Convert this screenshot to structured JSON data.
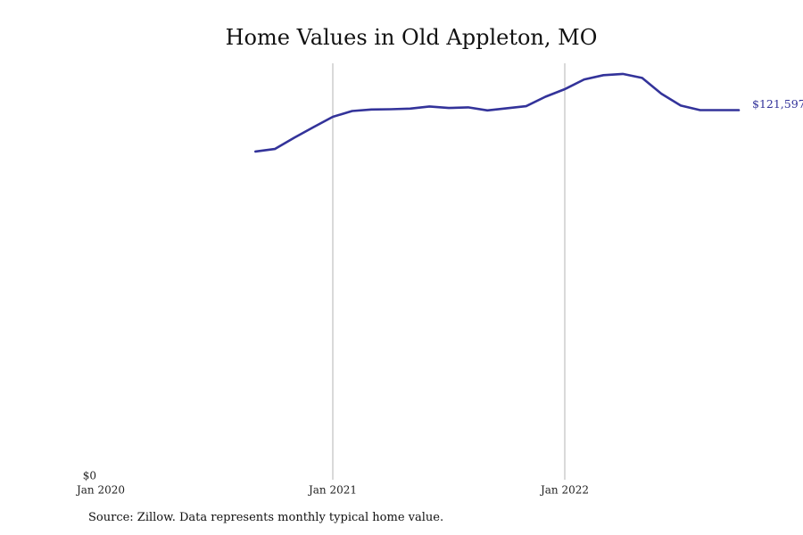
{
  "chart_data": {
    "type": "line",
    "title": "Home Values in Old Appleton, MO",
    "xlabel": "",
    "ylabel": "",
    "x_start": "2020-01",
    "x_ticks": [
      {
        "label": "Jan 2020",
        "date": "2020-01"
      },
      {
        "label": "Jan 2021",
        "date": "2021-01"
      },
      {
        "label": "Jan 2022",
        "date": "2022-01"
      }
    ],
    "y_ticks": [
      {
        "label": "$0",
        "value": 0
      }
    ],
    "ylim": [
      0,
      137000
    ],
    "grid": "vertical",
    "series": [
      {
        "color": "#33339a",
        "x": [
          "2020-09",
          "2020-10",
          "2020-11",
          "2020-12",
          "2021-01",
          "2021-02",
          "2021-03",
          "2021-04",
          "2021-05",
          "2021-06",
          "2021-07",
          "2021-08",
          "2021-09",
          "2021-10",
          "2021-11",
          "2021-12",
          "2022-01",
          "2022-02",
          "2022-03",
          "2022-04",
          "2022-05",
          "2022-06",
          "2022-07",
          "2022-08",
          "2022-09",
          "2022-10"
        ],
        "y": [
          108000,
          108800,
          112500,
          116000,
          119400,
          121300,
          121800,
          121900,
          122100,
          122800,
          122300,
          122500,
          121500,
          122200,
          122900,
          126000,
          128500,
          131700,
          133100,
          133500,
          132200,
          127000,
          123100,
          121597,
          121597,
          121597
        ]
      }
    ],
    "end_label": "$121,597"
  },
  "source_note": "Source: Zillow. Data represents monthly typical home value."
}
